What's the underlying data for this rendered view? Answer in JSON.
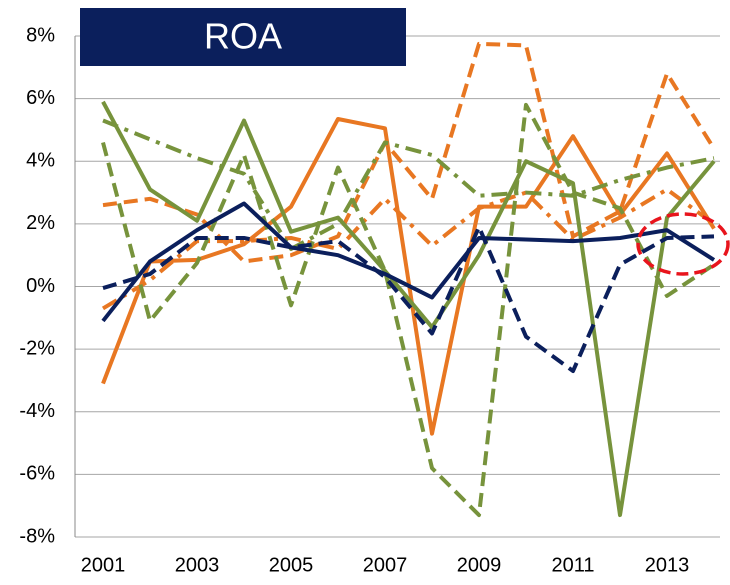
{
  "chart_data": {
    "type": "line",
    "title": "ROA",
    "categories": [
      "2001",
      null,
      "2003",
      null,
      "2005",
      null,
      "2007",
      null,
      "2009",
      null,
      "2011",
      null,
      "2013",
      null
    ],
    "ylim": [
      -8,
      8
    ],
    "yticks": [
      {
        "value": -8,
        "label": "-8%"
      },
      {
        "value": -6,
        "label": "-6%"
      },
      {
        "value": -4,
        "label": "-4%"
      },
      {
        "value": -2,
        "label": "-2%"
      },
      {
        "value": 0,
        "label": "0%"
      },
      {
        "value": 2,
        "label": "2%"
      },
      {
        "value": 4,
        "label": "4%"
      },
      {
        "value": 6,
        "label": "6%"
      },
      {
        "value": 8,
        "label": "8%"
      }
    ],
    "grid": true,
    "series": [
      {
        "color": "#e87722",
        "style": "dashed",
        "values": [
          2.6,
          2.8,
          2.3,
          0.8,
          1.0,
          1.6,
          4.6,
          2.8,
          7.75,
          7.7,
          1.6,
          2.4,
          6.8,
          4.4
        ]
      },
      {
        "color": "#e87722",
        "style": "dashdot",
        "values": [
          -0.7,
          0.2,
          1.45,
          1.45,
          1.55,
          1.2,
          2.8,
          1.3,
          2.5,
          3.0,
          1.5,
          2.2,
          3.1,
          2.0
        ]
      },
      {
        "color": "#e87722",
        "style": "solid",
        "values": [
          -3.1,
          0.8,
          0.85,
          1.35,
          2.55,
          5.35,
          5.05,
          -4.7,
          2.55,
          2.55,
          4.8,
          2.3,
          4.25,
          1.85
        ]
      },
      {
        "color": "#77933c",
        "style": "dashdot",
        "values": [
          5.3,
          4.7,
          4.1,
          3.6,
          1.2,
          2.0,
          4.6,
          4.2,
          2.9,
          3.0,
          2.9,
          3.4,
          3.8,
          4.1
        ]
      },
      {
        "color": "#77933c",
        "style": "dashed",
        "values": [
          4.6,
          -1.1,
          0.75,
          4.2,
          -0.6,
          3.8,
          0.5,
          -5.8,
          -7.3,
          5.8,
          3.0,
          2.5,
          -0.3,
          0.7
        ]
      },
      {
        "color": "#77933c",
        "style": "solid",
        "values": [
          5.9,
          3.1,
          2.1,
          5.3,
          1.75,
          2.2,
          0.5,
          -1.3,
          1.0,
          4.0,
          3.3,
          -7.3,
          2.2,
          4.0
        ]
      },
      {
        "color": "#0b1f5c",
        "style": "dashed",
        "values": [
          -0.05,
          0.4,
          1.55,
          1.55,
          1.25,
          1.45,
          0.3,
          -1.5,
          1.9,
          -1.6,
          -2.7,
          0.7,
          1.55,
          1.6
        ]
      },
      {
        "color": "#0b1f5c",
        "style": "solid",
        "values": [
          -1.1,
          0.8,
          1.8,
          2.65,
          1.25,
          1.0,
          0.4,
          -0.35,
          1.55,
          1.5,
          1.45,
          1.55,
          1.8,
          0.85
        ]
      }
    ]
  }
}
